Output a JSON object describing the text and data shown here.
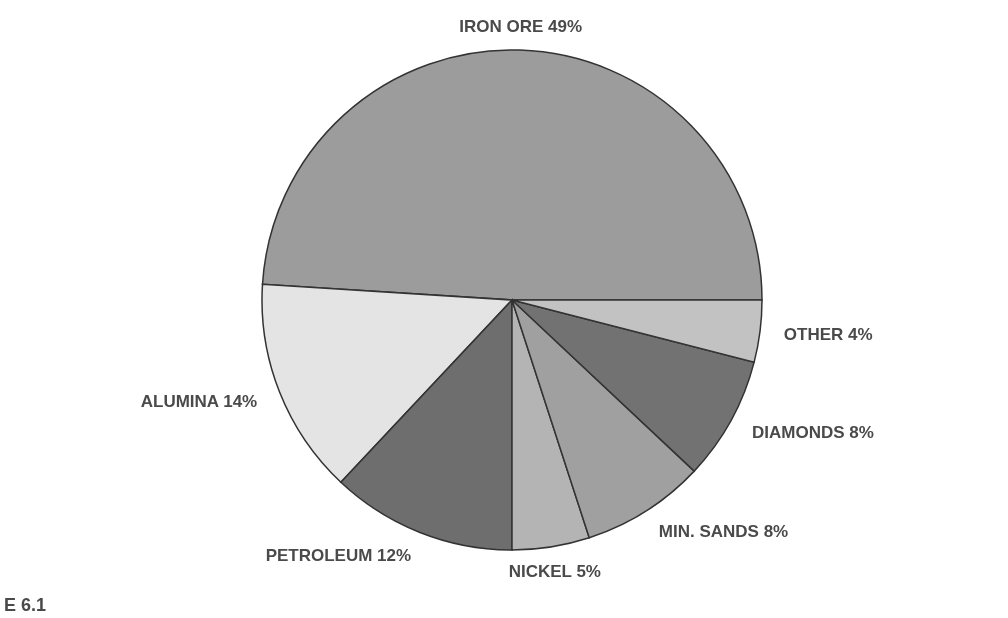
{
  "chart_data": {
    "type": "pie",
    "categories": [
      "IRON ORE",
      "ALUMINA",
      "PETROLEUM",
      "NICKEL",
      "MIN. SANDS",
      "DIAMONDS",
      "OTHER"
    ],
    "values": [
      49,
      14,
      12,
      5,
      8,
      8,
      4
    ],
    "value_labels": [
      "49%",
      "14%",
      "12%",
      "5%",
      "8%",
      "8%",
      "4%"
    ],
    "colors": [
      "#9c9c9c",
      "#e4e4e4",
      "#6e6e6e",
      "#b4b4b4",
      "#a0a0a0",
      "#727272",
      "#c2c2c2"
    ],
    "annotations": [
      "E 6.1"
    ]
  }
}
